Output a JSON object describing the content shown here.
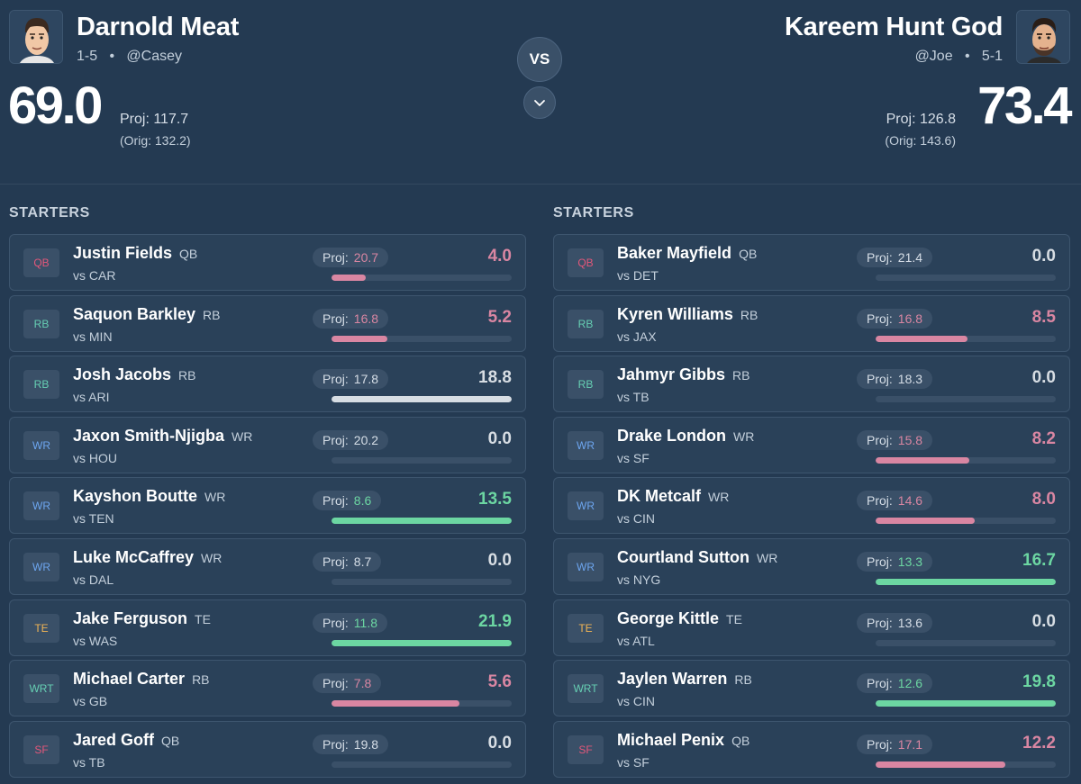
{
  "colors": {
    "bad": "#d986a2",
    "neutral": "#d7dde3",
    "good": "#6cd6a2",
    "pos": {
      "QB": "#e3577a",
      "RB": "#66cfb3",
      "WR": "#6da6f0",
      "TE": "#f0b455",
      "WRT": "#66cfb3",
      "SF": "#e3577a"
    }
  },
  "vs_label": "VS",
  "teams": {
    "left": {
      "name": "Darnold Meat",
      "meta": "1-5   •   @Casey",
      "score": "69.0",
      "proj": "Proj: 117.7",
      "orig": "(Orig: 132.2)",
      "section": "STARTERS",
      "players": [
        {
          "pos": "QB",
          "name": "Justin Fields",
          "position": "QB",
          "opp": "vs CAR",
          "proj": "20.7",
          "points": "4.0",
          "progress": 0.19,
          "status": "bad"
        },
        {
          "pos": "RB",
          "name": "Saquon Barkley",
          "position": "RB",
          "opp": "vs MIN",
          "proj": "16.8",
          "points": "5.2",
          "progress": 0.31,
          "status": "bad"
        },
        {
          "pos": "RB",
          "name": "Josh Jacobs",
          "position": "RB",
          "opp": "vs ARI",
          "proj": "17.8",
          "points": "18.8",
          "progress": 1.0,
          "status": "neutral"
        },
        {
          "pos": "WR",
          "name": "Jaxon Smith-Njigba",
          "position": "WR",
          "opp": "vs HOU",
          "proj": "20.2",
          "points": "0.0",
          "progress": 0,
          "status": "neutral"
        },
        {
          "pos": "WR",
          "name": "Kayshon Boutte",
          "position": "WR",
          "opp": "vs TEN",
          "proj": "8.6",
          "points": "13.5",
          "progress": 1.0,
          "status": "good"
        },
        {
          "pos": "WR",
          "name": "Luke McCaffrey",
          "position": "WR",
          "opp": "vs DAL",
          "proj": "8.7",
          "points": "0.0",
          "progress": 0,
          "status": "neutral"
        },
        {
          "pos": "TE",
          "name": "Jake Ferguson",
          "position": "TE",
          "opp": "vs WAS",
          "proj": "11.8",
          "points": "21.9",
          "progress": 1.0,
          "status": "good"
        },
        {
          "pos": "WRT",
          "name": "Michael Carter",
          "position": "RB",
          "opp": "vs GB",
          "proj": "7.8",
          "points": "5.6",
          "progress": 0.71,
          "status": "bad"
        },
        {
          "pos": "SF",
          "name": "Jared Goff",
          "position": "QB",
          "opp": "vs TB",
          "proj": "19.8",
          "points": "0.0",
          "progress": 0,
          "status": "neutral"
        }
      ]
    },
    "right": {
      "name": "Kareem Hunt God",
      "meta": "@Joe   •   5-1",
      "score": "73.4",
      "proj": "Proj: 126.8",
      "orig": "(Orig: 143.6)",
      "section": "STARTERS",
      "players": [
        {
          "pos": "QB",
          "name": "Baker Mayfield",
          "position": "QB",
          "opp": "vs DET",
          "proj": "21.4",
          "points": "0.0",
          "progress": 0,
          "status": "neutral"
        },
        {
          "pos": "RB",
          "name": "Kyren Williams",
          "position": "RB",
          "opp": "vs JAX",
          "proj": "16.8",
          "points": "8.5",
          "progress": 0.51,
          "status": "bad"
        },
        {
          "pos": "RB",
          "name": "Jahmyr Gibbs",
          "position": "RB",
          "opp": "vs TB",
          "proj": "18.3",
          "points": "0.0",
          "progress": 0,
          "status": "neutral"
        },
        {
          "pos": "WR",
          "name": "Drake London",
          "position": "WR",
          "opp": "vs SF",
          "proj": "15.8",
          "points": "8.2",
          "progress": 0.52,
          "status": "bad"
        },
        {
          "pos": "WR",
          "name": "DK Metcalf",
          "position": "WR",
          "opp": "vs CIN",
          "proj": "14.6",
          "points": "8.0",
          "progress": 0.55,
          "status": "bad"
        },
        {
          "pos": "WR",
          "name": "Courtland Sutton",
          "position": "WR",
          "opp": "vs NYG",
          "proj": "13.3",
          "points": "16.7",
          "progress": 1.0,
          "status": "good"
        },
        {
          "pos": "TE",
          "name": "George Kittle",
          "position": "TE",
          "opp": "vs ATL",
          "proj": "13.6",
          "points": "0.0",
          "progress": 0,
          "status": "neutral"
        },
        {
          "pos": "WRT",
          "name": "Jaylen Warren",
          "position": "RB",
          "opp": "vs CIN",
          "proj": "12.6",
          "points": "19.8",
          "progress": 1.0,
          "status": "good"
        },
        {
          "pos": "SF",
          "name": "Michael Penix",
          "position": "QB",
          "opp": "vs SF",
          "proj": "17.1",
          "points": "12.2",
          "progress": 0.72,
          "status": "bad"
        }
      ]
    }
  }
}
